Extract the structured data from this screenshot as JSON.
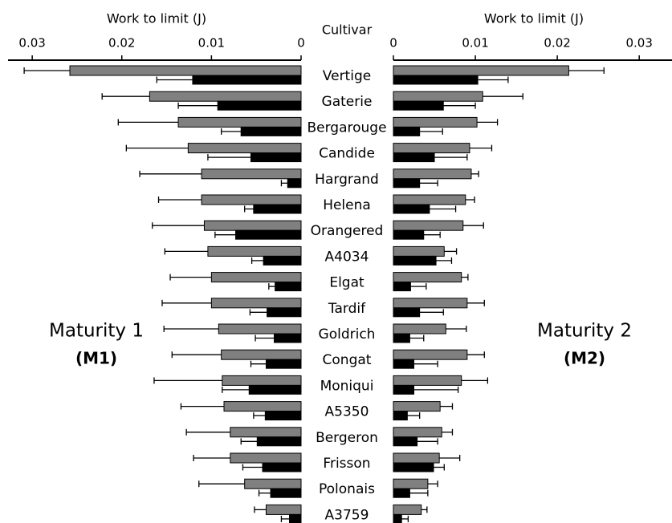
{
  "chart_data": {
    "type": "butterfly_bar",
    "category_label": "Cultivar",
    "categories": [
      "Vertige",
      "Gaterie",
      "Bergarouge",
      "Candide",
      "Hargrand",
      "Helena",
      "Orangered",
      "A4034",
      "Elgat",
      "Tardif",
      "Goldrich",
      "Congat",
      "Moniqui",
      "A5350",
      "Bergeron",
      "Frisson",
      "Polonais",
      "A3759"
    ],
    "panels": [
      {
        "xlabel": "Work to limit (J)",
        "label": "Maturity 1",
        "code": "(M1)",
        "xlim": [
          0,
          0.0327
        ],
        "xticks": [
          0,
          0.01,
          0.02,
          0.03
        ],
        "series": [
          {
            "color": "#808080",
            "values": [
              0.0258,
              0.0169,
              0.0137,
              0.0126,
              0.0111,
              0.0111,
              0.0108,
              0.0104,
              0.01,
              0.01,
              0.0092,
              0.0089,
              0.0088,
              0.0086,
              0.0079,
              0.0079,
              0.0063,
              0.0039
            ],
            "errors": [
              0.0051,
              0.0053,
              0.0067,
              0.0069,
              0.0069,
              0.0048,
              0.0058,
              0.0048,
              0.0046,
              0.0055,
              0.0061,
              0.0055,
              0.0076,
              0.0048,
              0.0049,
              0.0041,
              0.0051,
              0.0013
            ]
          },
          {
            "color": "#000000",
            "values": [
              0.0121,
              0.0093,
              0.0067,
              0.0056,
              0.0015,
              0.0053,
              0.0073,
              0.0042,
              0.0029,
              0.0038,
              0.003,
              0.0039,
              0.0058,
              0.004,
              0.0049,
              0.0043,
              0.0034,
              0.0013
            ],
            "errors": [
              0.004,
              0.0044,
              0.0022,
              0.0048,
              0.0007,
              0.001,
              0.0023,
              0.0013,
              0.0007,
              0.0019,
              0.0021,
              0.0017,
              0.003,
              0.0013,
              0.0018,
              0.0022,
              0.0013,
              0.0009
            ]
          }
        ]
      },
      {
        "xlabel": "Work to limit (J)",
        "label": "Maturity 2",
        "code": "(M2)",
        "xlim": [
          0,
          0.034
        ],
        "xticks": [
          0,
          0.01,
          0.02,
          0.03
        ],
        "series": [
          {
            "color": "#808080",
            "values": [
              0.0214,
              0.0109,
              0.0102,
              0.0093,
              0.0095,
              0.0088,
              0.0085,
              0.0062,
              0.0083,
              0.009,
              0.0064,
              0.009,
              0.0083,
              0.0057,
              0.0059,
              0.0056,
              0.0042,
              0.0034
            ],
            "errors": [
              0.0043,
              0.0049,
              0.0025,
              0.0027,
              0.0009,
              0.0011,
              0.0025,
              0.0015,
              0.0008,
              0.0021,
              0.0025,
              0.0021,
              0.0032,
              0.0015,
              0.0013,
              0.0025,
              0.0012,
              0.0007
            ]
          },
          {
            "color": "#000000",
            "values": [
              0.0103,
              0.0061,
              0.0032,
              0.005,
              0.0032,
              0.0044,
              0.0037,
              0.0052,
              0.0021,
              0.0032,
              0.002,
              0.0025,
              0.0025,
              0.0017,
              0.0029,
              0.0049,
              0.002,
              0.001
            ],
            "errors": [
              0.0037,
              0.0039,
              0.0028,
              0.004,
              0.0022,
              0.0032,
              0.002,
              0.0019,
              0.0019,
              0.0029,
              0.0017,
              0.0029,
              0.0054,
              0.0015,
              0.0025,
              0.0013,
              0.0022,
              0.0008
            ]
          }
        ]
      }
    ]
  }
}
